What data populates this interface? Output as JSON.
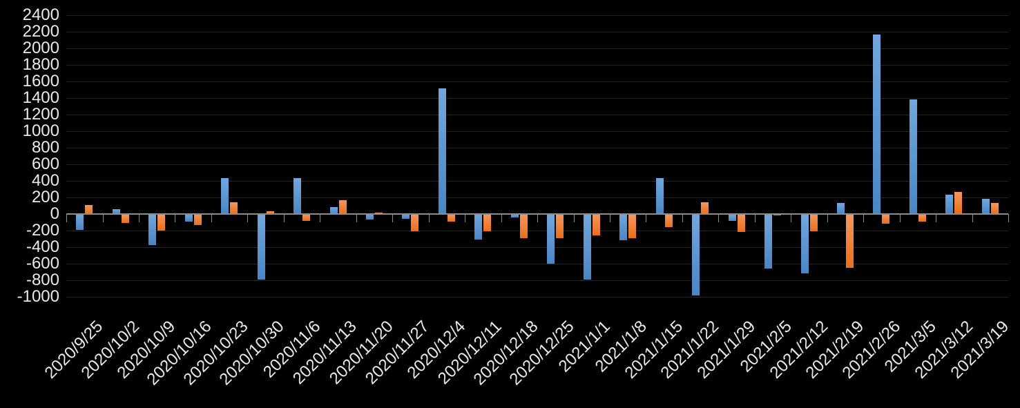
{
  "chart_data": {
    "type": "bar",
    "title": "",
    "legend": "none",
    "grid": "horizontal",
    "background_color": "#000000",
    "gridline_color": "#242424",
    "axis_line_color": "#8c8c8c",
    "label_color": "#e9e9e9",
    "ylim": [
      -1000,
      2400
    ],
    "ytick_step": 200,
    "yticks": [
      2400,
      2200,
      2000,
      1800,
      1600,
      1400,
      1200,
      1000,
      800,
      600,
      400,
      200,
      0,
      -200,
      -400,
      -600,
      -800,
      -1000
    ],
    "categories": [
      "2020/9/25",
      "2020/10/2",
      "2020/10/9",
      "2020/10/16",
      "2020/10/23",
      "2020/10/30",
      "2020/11/6",
      "2020/11/13",
      "2020/11/20",
      "2020/11/27",
      "2020/12/4",
      "2020/12/11",
      "2020/12/18",
      "2020/12/25",
      "2021/1/1",
      "2021/1/8",
      "2021/1/15",
      "2021/1/22",
      "2021/1/29",
      "2021/2/5",
      "2021/2/12",
      "2021/2/19",
      "2021/2/26",
      "2021/3/5",
      "2021/3/12",
      "2021/3/19"
    ],
    "series": [
      {
        "name": "series-blue",
        "color": "#5B9BD5",
        "values": [
          -195,
          55,
          -375,
          -95,
          435,
          -795,
          435,
          85,
          -70,
          -60,
          1520,
          -310,
          -40,
          -600,
          -795,
          -315,
          435,
          -985,
          -85,
          -660,
          -720,
          130,
          2165,
          1380,
          235,
          180
        ]
      },
      {
        "name": "series-orange",
        "color": "#ED7D31",
        "values": [
          105,
          -110,
          -200,
          -130,
          145,
          35,
          -80,
          165,
          20,
          -205,
          -95,
          -210,
          -295,
          -295,
          -260,
          -290,
          -160,
          145,
          -220,
          -20,
          -210,
          -650,
          -120,
          -90,
          270,
          135
        ]
      }
    ]
  }
}
